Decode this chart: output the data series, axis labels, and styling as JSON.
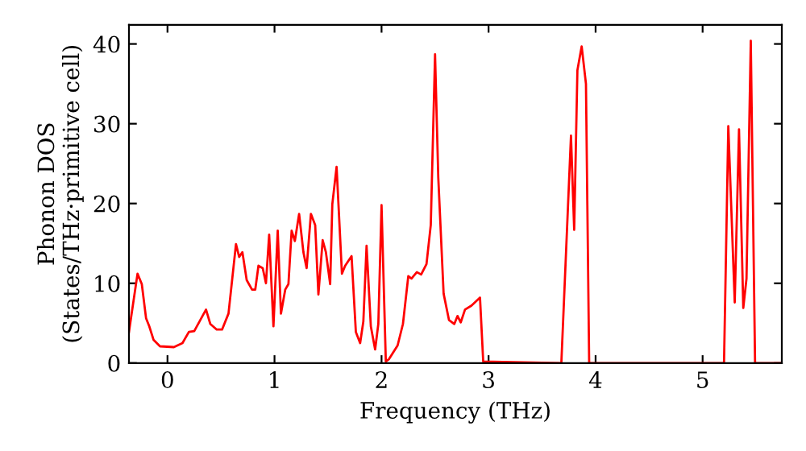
{
  "chart_data": {
    "type": "line",
    "xlabel": "Frequency (THz)",
    "ylabel": "Phonon DOS\n(States/THz·primitive cell)",
    "xlim": [
      -0.36,
      5.74
    ],
    "ylim": [
      0,
      42.4
    ],
    "xticks": [
      0,
      1,
      2,
      3,
      4,
      5
    ],
    "yticks": [
      0,
      10,
      20,
      30,
      40
    ],
    "grid": false,
    "legend": false,
    "marker": "none",
    "line_style": "solid",
    "series": [
      {
        "color": "#ff0000",
        "x": [
          -0.36,
          -0.28,
          -0.24,
          -0.2,
          -0.17,
          -0.13,
          -0.07,
          0.06,
          0.14,
          0.2,
          0.25,
          0.36,
          0.4,
          0.46,
          0.51,
          0.57,
          0.64,
          0.67,
          0.7,
          0.74,
          0.79,
          0.82,
          0.85,
          0.89,
          0.92,
          0.95,
          0.99,
          1.03,
          1.06,
          1.1,
          1.13,
          1.16,
          1.19,
          1.23,
          1.27,
          1.3,
          1.34,
          1.38,
          1.41,
          1.45,
          1.48,
          1.52,
          1.54,
          1.58,
          1.63,
          1.66,
          1.72,
          1.76,
          1.8,
          1.83,
          1.86,
          1.9,
          1.94,
          1.97,
          2.0,
          2.04,
          2.07,
          2.15,
          2.2,
          2.25,
          2.28,
          2.33,
          2.37,
          2.42,
          2.46,
          2.5,
          2.53,
          2.58,
          2.63,
          2.68,
          2.71,
          2.74,
          2.78,
          2.84,
          2.92,
          2.95,
          3.68,
          3.77,
          3.8,
          3.83,
          3.87,
          3.91,
          3.94,
          5.2,
          5.24,
          5.3,
          5.34,
          5.38,
          5.41,
          5.45,
          5.49,
          5.74
        ],
        "values": [
          3.9,
          11.2,
          9.9,
          5.6,
          4.6,
          2.9,
          2.1,
          2.0,
          2.5,
          3.9,
          4.0,
          6.7,
          4.9,
          4.2,
          4.2,
          6.2,
          14.9,
          13.3,
          13.9,
          10.4,
          9.2,
          9.2,
          12.2,
          11.9,
          10.0,
          16.1,
          4.6,
          16.6,
          6.2,
          9.2,
          9.9,
          16.6,
          15.3,
          18.7,
          13.9,
          11.9,
          18.7,
          17.3,
          8.6,
          15.4,
          13.9,
          9.9,
          19.9,
          24.6,
          11.2,
          12.2,
          13.4,
          3.9,
          2.5,
          5.2,
          14.7,
          4.6,
          1.7,
          4.9,
          19.8,
          0.2,
          0.5,
          2.2,
          4.9,
          10.9,
          10.6,
          11.4,
          11.1,
          12.4,
          17.3,
          38.7,
          23.3,
          8.7,
          5.4,
          4.9,
          5.9,
          5.1,
          6.7,
          7.2,
          8.2,
          0.2,
          0,
          28.5,
          16.7,
          36.7,
          39.7,
          35.0,
          0,
          0,
          29.7,
          7.6,
          29.3,
          6.9,
          10.6,
          40.4,
          0,
          0
        ]
      }
    ]
  }
}
